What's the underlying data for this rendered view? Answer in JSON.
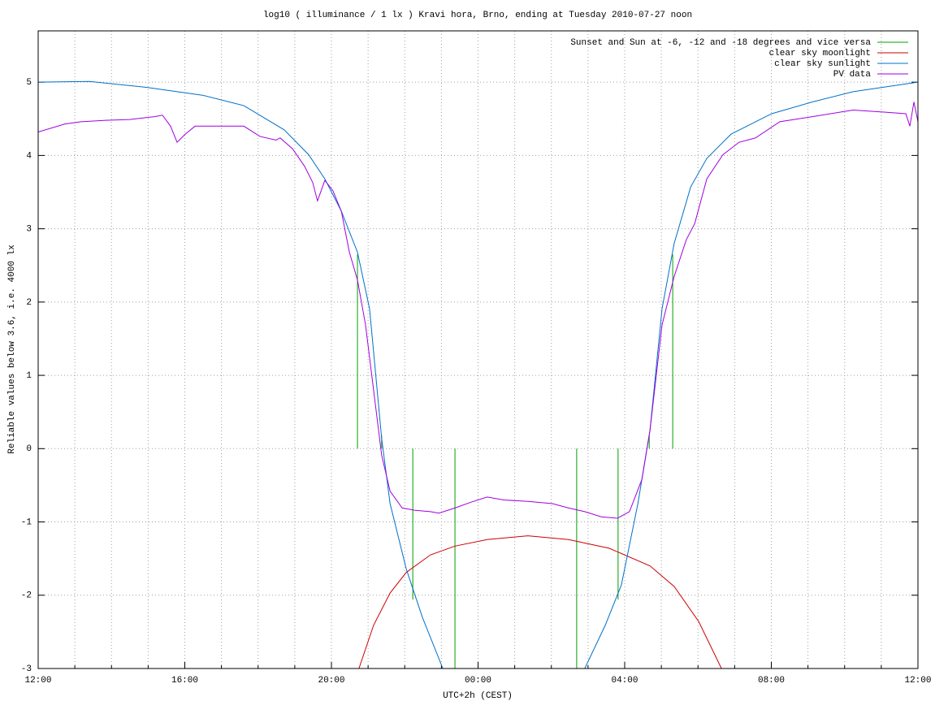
{
  "chart_data": {
    "type": "line",
    "title": "log10 ( illuminance / 1 lx ) Kravi hora, Brno, ending at Tuesday 2010-07-27 noon",
    "x_label": "UTC+2h (CEST)",
    "y_label": "Reliable values below 3.6, i.e. 4000 lx",
    "xlim": [
      0,
      24
    ],
    "xticks": [
      {
        "value": 0,
        "label": "12:00"
      },
      {
        "value": 4,
        "label": "16:00"
      },
      {
        "value": 8,
        "label": "20:00"
      },
      {
        "value": 12,
        "label": "00:00"
      },
      {
        "value": 16,
        "label": "04:00"
      },
      {
        "value": 20,
        "label": "08:00"
      },
      {
        "value": 24,
        "label": "12:00"
      }
    ],
    "xminor": 4,
    "ylim": [
      -3,
      5.7
    ],
    "yticks": [
      -3,
      -2,
      -1,
      0,
      1,
      2,
      3,
      4,
      5
    ],
    "grid": true,
    "legend": "top-right",
    "series": [
      {
        "name": "Sunset and Sun at -6, -12 and -18 degrees and vice versa",
        "color": "#00a000",
        "style": "impulses",
        "x": [
          8.71,
          9.37,
          10.22,
          11.37,
          14.69,
          15.82,
          16.67,
          17.31
        ],
        "values": [
          2.65,
          0.18,
          -2.06,
          -3,
          -3,
          -2.06,
          0.18,
          2.65
        ]
      },
      {
        "name": "clear sky moonlight",
        "color": "#cc0000",
        "style": "line",
        "x": [
          8.75,
          9.15,
          9.6,
          10.04,
          10.7,
          11.37,
          12.25,
          13.36,
          14.47,
          15.58,
          16.69,
          17.35,
          18.02,
          18.64
        ],
        "values": [
          -3,
          -2.41,
          -1.97,
          -1.69,
          -1.45,
          -1.33,
          -1.24,
          -1.19,
          -1.24,
          -1.36,
          -1.6,
          -1.88,
          -2.36,
          -3
        ]
      },
      {
        "name": "clear sky sunlight",
        "color": "#0070c8",
        "style": "line",
        "x": [
          0,
          1.4,
          2.95,
          4.5,
          5.61,
          6.71,
          7.38,
          7.82,
          8.27,
          8.71,
          9.04,
          9.37,
          9.6,
          10.04,
          10.48,
          11.04,
          12.98,
          14.91,
          15.47,
          15.91,
          16.36,
          16.69,
          17.02,
          17.35,
          17.8,
          18.24,
          18.9,
          20.01,
          21.12,
          22.23,
          24
        ],
        "values": [
          5.0,
          5.01,
          4.93,
          4.82,
          4.68,
          4.35,
          4.01,
          3.68,
          3.24,
          2.68,
          1.91,
          0.14,
          -0.75,
          -1.64,
          -2.3,
          -3,
          null,
          -3,
          -2.41,
          -1.86,
          -0.75,
          0.25,
          1.91,
          2.8,
          3.57,
          3.96,
          4.29,
          4.57,
          4.73,
          4.87,
          5.0
        ]
      },
      {
        "name": "PV data",
        "color": "#a000e0",
        "style": "line",
        "x": [
          0,
          0.73,
          1.17,
          1.84,
          2.5,
          3.17,
          3.39,
          3.61,
          3.79,
          4.01,
          4.28,
          4.94,
          5.61,
          6.05,
          6.49,
          6.6,
          6.94,
          7.27,
          7.49,
          7.62,
          7.82,
          8.04,
          8.27,
          8.49,
          8.71,
          8.93,
          9.15,
          9.37,
          9.6,
          9.93,
          10.26,
          10.7,
          10.93,
          11.37,
          11.81,
          12.25,
          12.7,
          13.36,
          14.03,
          14.47,
          14.91,
          15.36,
          15.8,
          16.13,
          16.47,
          16.69,
          17.02,
          17.35,
          17.68,
          17.91,
          18.24,
          18.68,
          19.12,
          19.57,
          20.23,
          21.12,
          22.23,
          23.11,
          23.67,
          23.78,
          23.89,
          24
        ],
        "values": [
          4.32,
          4.43,
          4.46,
          4.48,
          4.49,
          4.53,
          4.55,
          4.4,
          4.18,
          4.29,
          4.4,
          4.4,
          4.4,
          4.26,
          4.21,
          4.24,
          4.09,
          3.85,
          3.63,
          3.38,
          3.66,
          3.52,
          3.24,
          2.68,
          2.3,
          1.69,
          0.8,
          -0.09,
          -0.58,
          -0.81,
          -0.84,
          -0.86,
          -0.88,
          -0.81,
          -0.73,
          -0.66,
          -0.7,
          -0.72,
          -0.75,
          -0.81,
          -0.86,
          -0.93,
          -0.95,
          -0.86,
          -0.42,
          0.25,
          1.69,
          2.35,
          2.85,
          3.07,
          3.68,
          4.01,
          4.18,
          4.24,
          4.46,
          4.53,
          4.62,
          4.59,
          4.57,
          4.4,
          4.73,
          4.46
        ]
      }
    ]
  }
}
